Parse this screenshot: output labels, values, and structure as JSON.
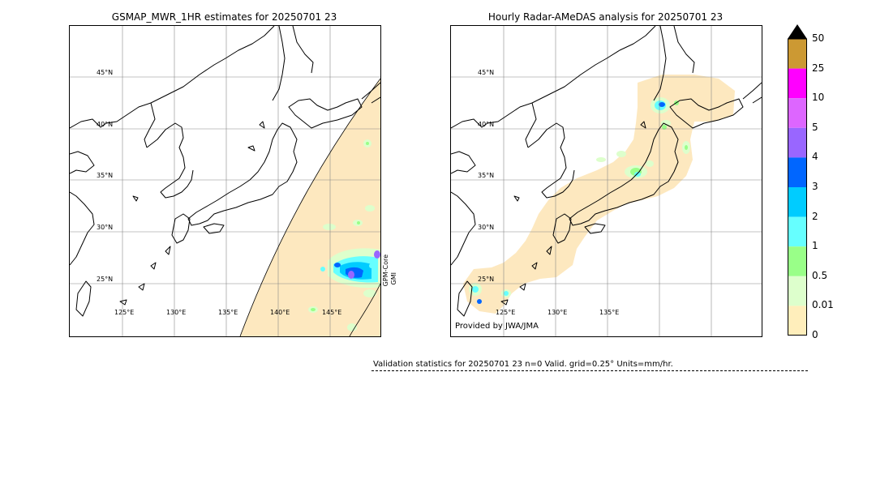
{
  "left_panel": {
    "title": "GSMAP_MWR_1HR estimates for 20250701 23",
    "lat_labels": [
      "45°N",
      "40°N",
      "35°N",
      "30°N",
      "25°N"
    ],
    "lon_labels": [
      "125°E",
      "130°E",
      "135°E",
      "140°E",
      "145°E"
    ],
    "satellite_label_1": "GPM-Core",
    "satellite_label_2": "GMI"
  },
  "right_panel": {
    "title": "Hourly Radar-AMeDAS analysis for 20250701 23",
    "lat_labels": [
      "45°N",
      "40°N",
      "35°N",
      "30°N",
      "25°N"
    ],
    "lon_labels": [
      "125°E",
      "130°E",
      "135°E"
    ],
    "provided_by": "Provided by JWA/JMA"
  },
  "colorbar": {
    "tick_labels": [
      "50",
      "25",
      "10",
      "5",
      "4",
      "3",
      "2",
      "1",
      "0.5",
      "0.01",
      "0"
    ],
    "colors": [
      "#cc9933",
      "#ff00ff",
      "#dd66ff",
      "#9966ff",
      "#0066ff",
      "#00ccff",
      "#66ffff",
      "#99ff88",
      "#ddffcc",
      "#ffeebb"
    ],
    "arrow_color": "#000000"
  },
  "validation": {
    "text": "Validation statistics for 20250701 23  n=0 Valid. grid=0.25° Units=mm/hr."
  },
  "colors": {
    "land_outline": "#000000",
    "grid": "#888888",
    "swath_fill": "#fde8bf",
    "light_precip": "#ddffcc"
  }
}
